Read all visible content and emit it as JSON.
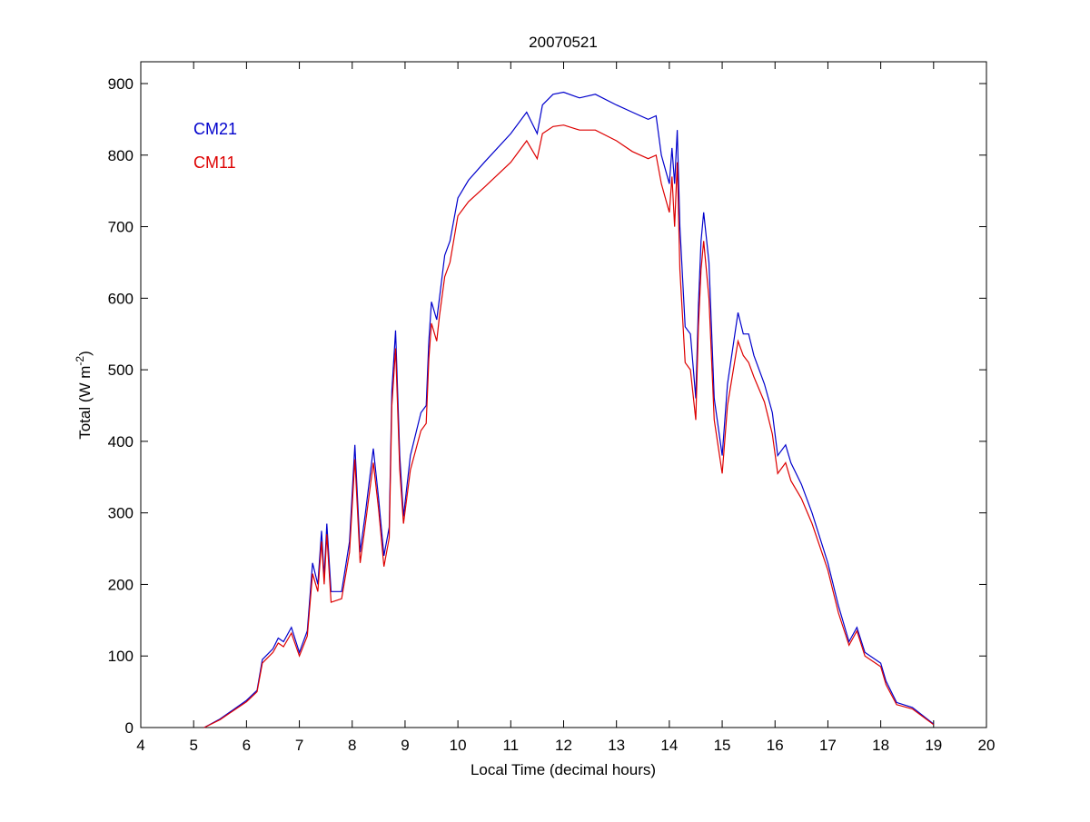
{
  "chart_data": {
    "type": "line",
    "title": "20070521",
    "xlabel": "Local Time (decimal hours)",
    "ylabel": "Total (W m",
    "ylabel_sup": "-2",
    "ylabel_end": ")",
    "xlim": [
      4,
      20
    ],
    "ylim": [
      0,
      900
    ],
    "xticks": [
      4,
      5,
      6,
      7,
      8,
      9,
      10,
      11,
      12,
      13,
      14,
      15,
      16,
      17,
      18,
      19,
      20
    ],
    "yticks": [
      0,
      100,
      200,
      300,
      400,
      500,
      600,
      700,
      800,
      900
    ],
    "grid": false,
    "legend_placement": "top-left",
    "x": [
      5.2,
      5.5,
      6.0,
      6.2,
      6.3,
      6.5,
      6.6,
      6.7,
      6.85,
      7.0,
      7.15,
      7.25,
      7.35,
      7.42,
      7.47,
      7.52,
      7.6,
      7.8,
      7.95,
      8.05,
      8.15,
      8.25,
      8.4,
      8.5,
      8.6,
      8.7,
      8.75,
      8.82,
      8.9,
      8.97,
      9.1,
      9.3,
      9.4,
      9.45,
      9.5,
      9.6,
      9.65,
      9.75,
      9.85,
      10.0,
      10.2,
      10.5,
      11.0,
      11.3,
      11.5,
      11.6,
      11.8,
      12.0,
      12.3,
      12.6,
      13.0,
      13.3,
      13.6,
      13.75,
      13.85,
      14.0,
      14.05,
      14.1,
      14.15,
      14.2,
      14.3,
      14.4,
      14.5,
      14.55,
      14.6,
      14.65,
      14.75,
      14.85,
      15.0,
      15.1,
      15.3,
      15.4,
      15.5,
      15.6,
      15.8,
      15.95,
      16.05,
      16.2,
      16.3,
      16.5,
      16.7,
      17.0,
      17.2,
      17.4,
      17.55,
      17.7,
      18.0,
      18.1,
      18.3,
      18.6,
      19.0
    ],
    "series": [
      {
        "name": "CM21",
        "color": "#0000cc",
        "values": [
          0,
          12,
          38,
          52,
          95,
          110,
          125,
          120,
          140,
          105,
          135,
          230,
          200,
          275,
          210,
          285,
          190,
          190,
          260,
          395,
          245,
          300,
          390,
          320,
          240,
          280,
          470,
          555,
          380,
          295,
          380,
          440,
          450,
          540,
          595,
          570,
          600,
          660,
          680,
          740,
          765,
          790,
          830,
          860,
          830,
          870,
          885,
          888,
          880,
          885,
          870,
          860,
          850,
          855,
          800,
          760,
          810,
          760,
          835,
          700,
          560,
          550,
          460,
          590,
          680,
          720,
          650,
          460,
          380,
          480,
          580,
          550,
          550,
          520,
          480,
          440,
          380,
          395,
          370,
          340,
          300,
          230,
          170,
          120,
          140,
          105,
          90,
          65,
          35,
          28,
          5
        ]
      },
      {
        "name": "CM11",
        "color": "#dd0000",
        "values": [
          0,
          11,
          36,
          50,
          90,
          105,
          118,
          113,
          132,
          100,
          128,
          215,
          190,
          260,
          200,
          270,
          175,
          180,
          245,
          375,
          230,
          285,
          370,
          305,
          225,
          265,
          450,
          530,
          360,
          285,
          360,
          415,
          425,
          515,
          565,
          540,
          575,
          630,
          650,
          715,
          735,
          755,
          790,
          820,
          795,
          830,
          840,
          842,
          835,
          835,
          820,
          805,
          795,
          800,
          760,
          720,
          770,
          700,
          790,
          640,
          510,
          500,
          430,
          560,
          640,
          680,
          600,
          430,
          355,
          450,
          540,
          520,
          510,
          490,
          455,
          410,
          355,
          370,
          345,
          320,
          285,
          220,
          160,
          115,
          135,
          100,
          85,
          60,
          32,
          26,
          4
        ]
      }
    ]
  }
}
